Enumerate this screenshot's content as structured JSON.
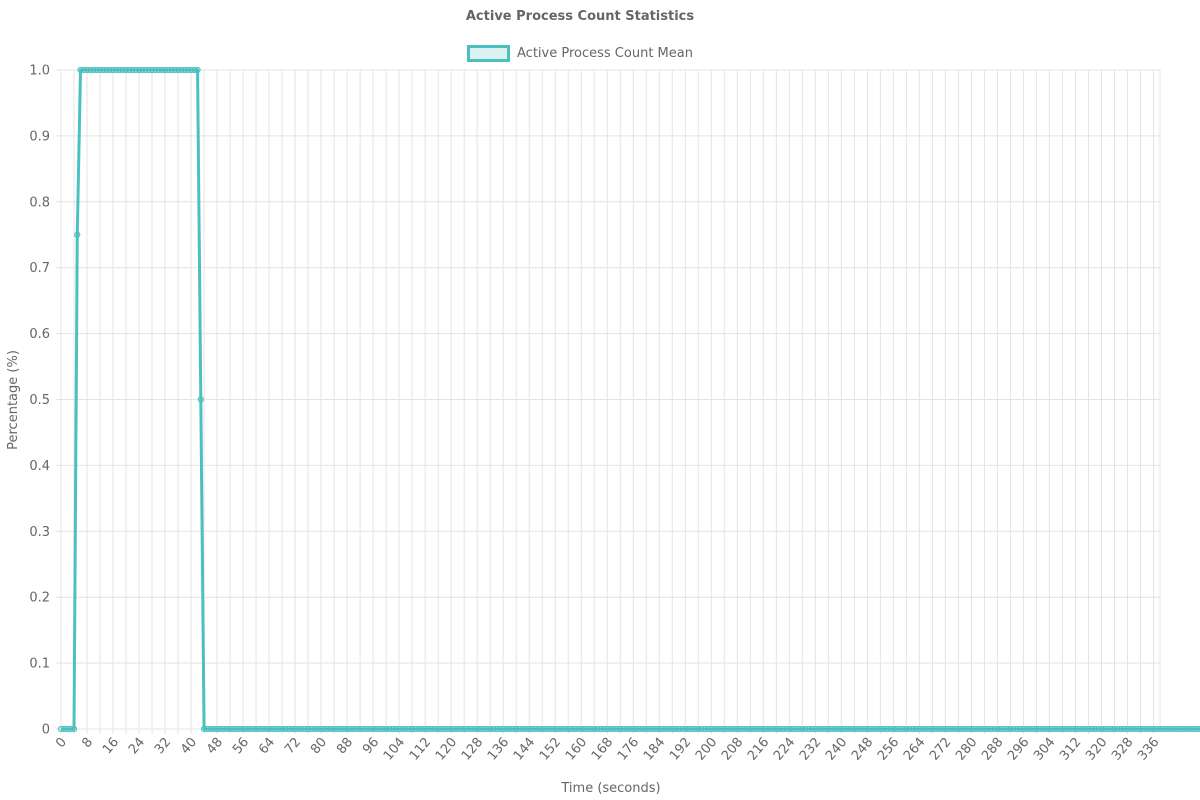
{
  "chart_data": {
    "type": "line",
    "title": "Active Process Count Statistics",
    "xlabel": "Time (seconds)",
    "ylabel": "Percentage (%)",
    "xlim": [
      0,
      338
    ],
    "ylim": [
      0,
      1.0
    ],
    "grid": true,
    "legend_position": "top",
    "x_ticks": [
      0,
      8,
      16,
      24,
      32,
      40,
      48,
      56,
      64,
      72,
      80,
      88,
      96,
      104,
      112,
      120,
      128,
      136,
      144,
      152,
      160,
      168,
      176,
      184,
      192,
      200,
      208,
      216,
      224,
      232,
      240,
      248,
      256,
      264,
      272,
      280,
      288,
      296,
      304,
      312,
      320,
      328,
      336
    ],
    "y_ticks": [
      0,
      0.1,
      0.2,
      0.3,
      0.4,
      0.5,
      0.6,
      0.7,
      0.8,
      0.9,
      1.0
    ],
    "y_tick_labels": [
      "0",
      "0.1",
      "0.2",
      "0.3",
      "0.4",
      "0.5",
      "0.6",
      "0.7",
      "0.8",
      "0.9",
      "1.0"
    ],
    "series": [
      {
        "name": "Active Process Count Mean",
        "color": "#4bc0c0",
        "fill": "rgba(75,192,192,0.2)",
        "sampling_interval": 1,
        "values": [
          0,
          0,
          0,
          0,
          0,
          0.75,
          1,
          1,
          1,
          1,
          1,
          1,
          1,
          1,
          1,
          1,
          1,
          1,
          1,
          1,
          1,
          1,
          1,
          1,
          1,
          1,
          1,
          1,
          1,
          1,
          1,
          1,
          1,
          1,
          1,
          1,
          1,
          1,
          1,
          1,
          1,
          1,
          1,
          0.5,
          0,
          0,
          0,
          0,
          0,
          0,
          0,
          0,
          0,
          0,
          0,
          0,
          0,
          0,
          0,
          0,
          0,
          0,
          0,
          0,
          0,
          0,
          0,
          0,
          0,
          0,
          0,
          0,
          0,
          0,
          0,
          0,
          0,
          0,
          0,
          0,
          0,
          0,
          0,
          0,
          0,
          0,
          0,
          0,
          0,
          0,
          0,
          0,
          0,
          0,
          0,
          0,
          0,
          0,
          0,
          0,
          0,
          0,
          0,
          0,
          0,
          0,
          0,
          0,
          0,
          0,
          0,
          0,
          0,
          0,
          0,
          0,
          0,
          0,
          0,
          0,
          0,
          0,
          0,
          0,
          0,
          0,
          0,
          0,
          0,
          0,
          0,
          0,
          0,
          0,
          0,
          0,
          0,
          0,
          0,
          0,
          0,
          0,
          0,
          0,
          0,
          0,
          0,
          0,
          0,
          0,
          0,
          0,
          0,
          0,
          0,
          0,
          0,
          0,
          0,
          0,
          0,
          0,
          0,
          0,
          0,
          0,
          0,
          0,
          0,
          0,
          0,
          0,
          0,
          0,
          0,
          0,
          0,
          0,
          0,
          0,
          0,
          0,
          0,
          0,
          0,
          0,
          0,
          0,
          0,
          0,
          0,
          0,
          0,
          0,
          0,
          0,
          0,
          0,
          0,
          0,
          0,
          0,
          0,
          0,
          0,
          0,
          0,
          0,
          0,
          0,
          0,
          0,
          0,
          0,
          0,
          0,
          0,
          0,
          0,
          0,
          0,
          0,
          0,
          0,
          0,
          0,
          0,
          0,
          0,
          0,
          0,
          0,
          0,
          0,
          0,
          0,
          0,
          0,
          0,
          0,
          0,
          0,
          0,
          0,
          0,
          0,
          0,
          0,
          0,
          0,
          0,
          0,
          0,
          0,
          0,
          0,
          0,
          0,
          0,
          0,
          0,
          0,
          0,
          0,
          0,
          0,
          0,
          0,
          0,
          0,
          0,
          0,
          0,
          0,
          0,
          0,
          0,
          0,
          0,
          0,
          0,
          0,
          0,
          0,
          0,
          0,
          0,
          0,
          0,
          0,
          0,
          0,
          0,
          0,
          0,
          0,
          0,
          0,
          0,
          0,
          0,
          0,
          0,
          0,
          0,
          0,
          0,
          0,
          0,
          0,
          0,
          0,
          0,
          0,
          0,
          0,
          0,
          0,
          0,
          0,
          0,
          0,
          0,
          0,
          0,
          0,
          0,
          0,
          0,
          0,
          0,
          0,
          0,
          0,
          0,
          0,
          0,
          0,
          0,
          0,
          0,
          0,
          0,
          0,
          0,
          0,
          0,
          0,
          0,
          0,
          0,
          0,
          0,
          0,
          0,
          0,
          0
        ]
      }
    ]
  }
}
